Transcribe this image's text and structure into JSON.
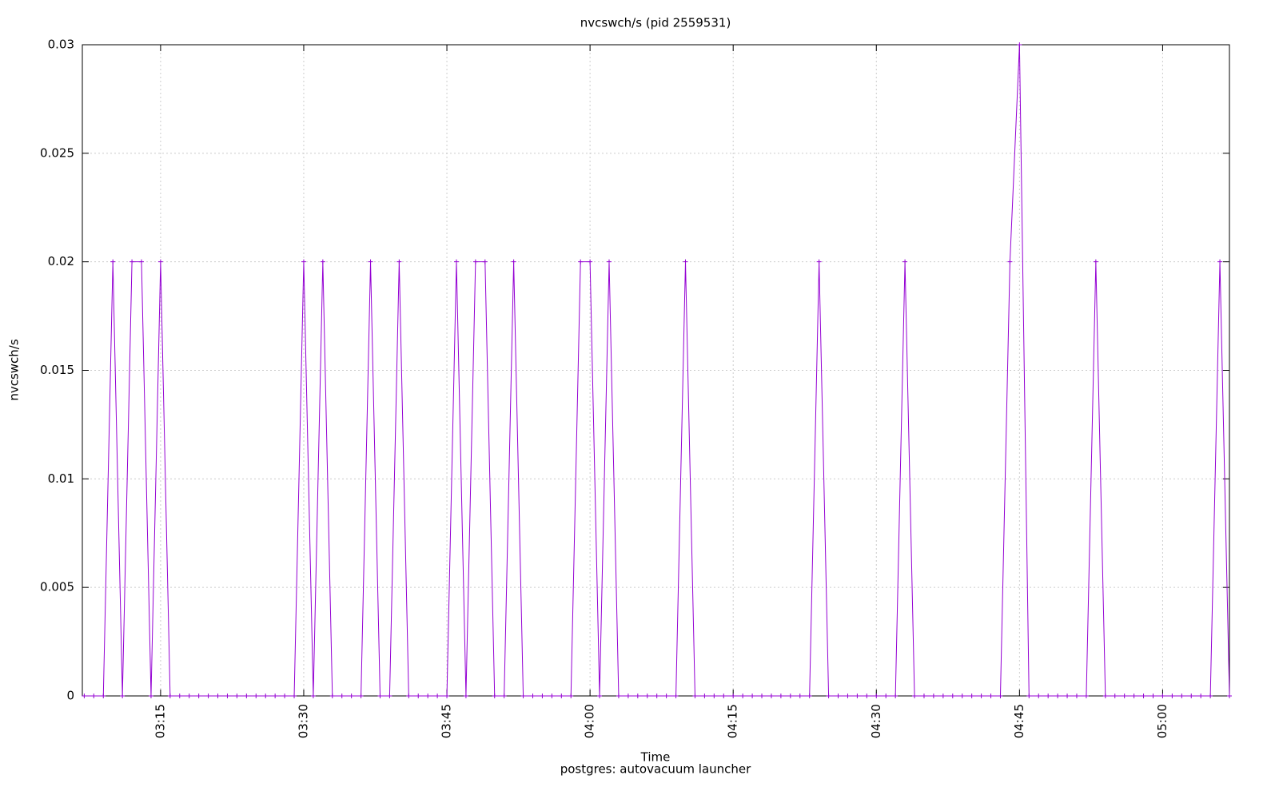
{
  "chart_data": {
    "type": "line",
    "title": "nvcswch/s (pid 2559531)",
    "xlabel": "Time",
    "footer": "postgres: autovacuum launcher",
    "ylabel": "nvcswch/s",
    "color": "#9400d3",
    "grid": true,
    "x": [
      187,
      188,
      189,
      190,
      191,
      192,
      193,
      194,
      195,
      196,
      197,
      198,
      199,
      200,
      201,
      202,
      203,
      204,
      205,
      206,
      207,
      208,
      209,
      210,
      211,
      212,
      213,
      214,
      215,
      216,
      217,
      218,
      219,
      220,
      221,
      222,
      223,
      224,
      225,
      226,
      227,
      228,
      229,
      230,
      231,
      232,
      233,
      234,
      235,
      236,
      237,
      238,
      239,
      240,
      241,
      242,
      243,
      244,
      245,
      246,
      247,
      248,
      249,
      250,
      251,
      252,
      253,
      254,
      255,
      256,
      257,
      258,
      259,
      260,
      261,
      262,
      263,
      264,
      265,
      266,
      267,
      268,
      269,
      270,
      271,
      272,
      273,
      274,
      275,
      276,
      277,
      278,
      279,
      280,
      281,
      282,
      283,
      284,
      285,
      286,
      287,
      288,
      289,
      290,
      291,
      292,
      293,
      294,
      295,
      296,
      297,
      298,
      299,
      300,
      301,
      302,
      303,
      304,
      305,
      306,
      307
    ],
    "values": [
      0,
      0,
      0,
      0.02,
      0,
      0.02,
      0.02,
      0,
      0.02,
      0,
      0,
      0,
      0,
      0,
      0,
      0,
      0,
      0,
      0,
      0,
      0,
      0,
      0,
      0.02,
      0,
      0.02,
      0,
      0,
      0,
      0,
      0.02,
      0,
      0,
      0.02,
      0,
      0,
      0,
      0,
      0,
      0.02,
      0,
      0.02,
      0.02,
      0,
      0,
      0.02,
      0,
      0,
      0,
      0,
      0,
      0,
      0.02,
      0.02,
      0,
      0.02,
      0,
      0,
      0,
      0,
      0,
      0,
      0,
      0.02,
      0,
      0,
      0,
      0,
      0,
      0,
      0,
      0,
      0,
      0,
      0,
      0,
      0,
      0.02,
      0,
      0,
      0,
      0,
      0,
      0,
      0,
      0,
      0.02,
      0,
      0,
      0,
      0,
      0,
      0,
      0,
      0,
      0,
      0,
      0.02,
      0.03,
      0,
      0,
      0,
      0,
      0,
      0,
      0,
      0.02,
      0,
      0,
      0,
      0,
      0,
      0,
      0,
      0,
      0,
      0,
      0,
      0,
      0.02,
      0
    ],
    "xlim": [
      186.8,
      307
    ],
    "xticks": [
      {
        "value": 195,
        "label": "03:15"
      },
      {
        "value": 210,
        "label": "03:30"
      },
      {
        "value": 225,
        "label": "03:45"
      },
      {
        "value": 240,
        "label": "04:00"
      },
      {
        "value": 255,
        "label": "04:15"
      },
      {
        "value": 270,
        "label": "04:30"
      },
      {
        "value": 285,
        "label": "04:45"
      },
      {
        "value": 300,
        "label": "05:00"
      }
    ],
    "ylim": [
      0,
      0.03
    ],
    "yticks": [
      0,
      0.005,
      0.01,
      0.015,
      0.02,
      0.025,
      0.03
    ]
  }
}
